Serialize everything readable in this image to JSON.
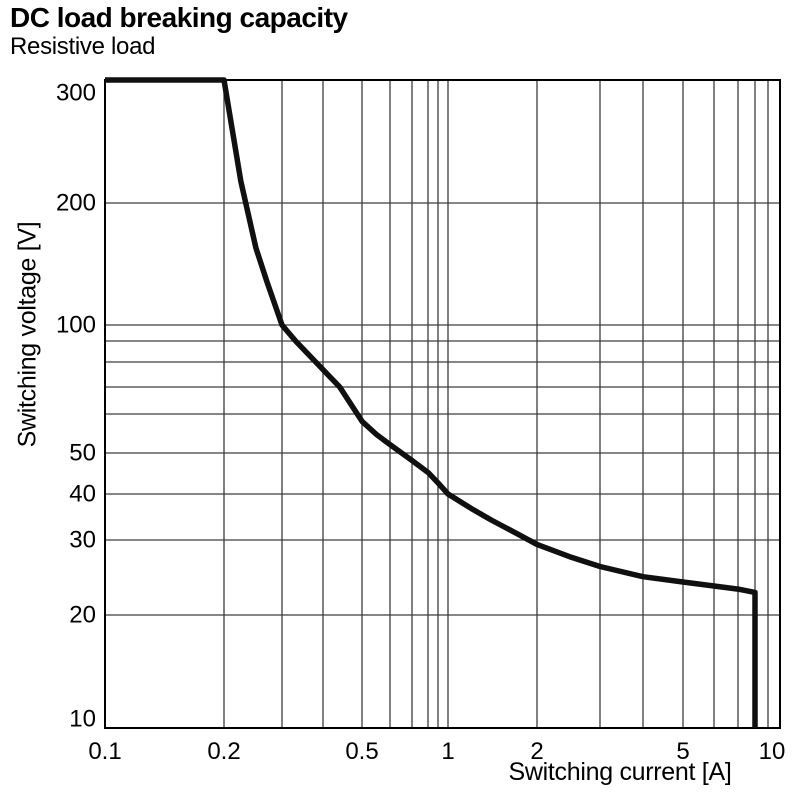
{
  "title": "DC load breaking capacity",
  "subtitle": "Resistive load",
  "chart_data": {
    "type": "line",
    "title": "DC load breaking capacity",
    "subtitle": "Resistive load",
    "xlabel": "Switching current [A]",
    "ylabel": "Switching voltage [V]",
    "x_scale": "log",
    "y_scale": "log",
    "xlim": [
      0.1,
      10
    ],
    "ylim": [
      10,
      300
    ],
    "grid": true,
    "legend": false,
    "x_tick_labels": [
      "0.1",
      "0.2",
      "0.5",
      "1",
      "2",
      "5",
      "10"
    ],
    "x_tick_values": [
      0.1,
      0.2,
      0.5,
      1,
      2,
      5,
      10
    ],
    "y_tick_labels": [
      "10",
      "20",
      "30",
      "40",
      "50",
      "100",
      "200",
      "300"
    ],
    "y_tick_values": [
      10,
      20,
      30,
      40,
      50,
      100,
      200,
      300
    ],
    "x_gridlines": [
      0.2,
      0.3,
      0.4,
      0.5,
      0.6,
      0.7,
      0.8,
      0.9,
      1,
      2,
      3,
      4,
      5,
      6,
      7,
      8,
      9
    ],
    "y_gridlines": [
      20,
      30,
      40,
      50,
      60,
      70,
      80,
      90,
      100,
      200
    ],
    "series": [
      {
        "name": "Resistive load",
        "points": [
          [
            0.1,
            300
          ],
          [
            0.2,
            300
          ],
          [
            0.225,
            215
          ],
          [
            0.25,
            155
          ],
          [
            0.27,
            128
          ],
          [
            0.3,
            100
          ],
          [
            0.33,
            90
          ],
          [
            0.38,
            80
          ],
          [
            0.44,
            70
          ],
          [
            0.5,
            58
          ],
          [
            0.55,
            54.5
          ],
          [
            0.6,
            52
          ],
          [
            0.7,
            48
          ],
          [
            0.8,
            45
          ],
          [
            0.9,
            42.5
          ],
          [
            1.0,
            40
          ],
          [
            1.2,
            36.5
          ],
          [
            1.4,
            34
          ],
          [
            1.7,
            31.3
          ],
          [
            2.0,
            29.3
          ],
          [
            2.5,
            27.3
          ],
          [
            3,
            26
          ],
          [
            4,
            24.6
          ],
          [
            5,
            23.9
          ],
          [
            6,
            23.4
          ],
          [
            7,
            23
          ],
          [
            8,
            22.6
          ],
          [
            8,
            10
          ]
        ]
      }
    ],
    "colors": {
      "background": "#ffffff",
      "curve": "#101010",
      "grid": "#3d3d3d",
      "frame": "#000000",
      "text": "#000000"
    }
  }
}
